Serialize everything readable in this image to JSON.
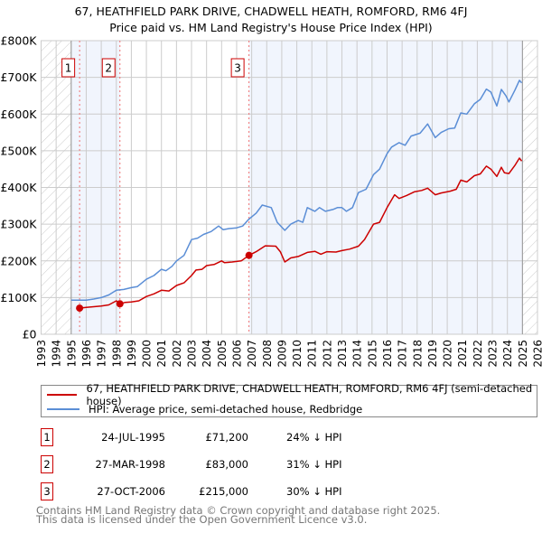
{
  "chart_data": {
    "type": "line",
    "title": "67, HEATHFIELD PARK DRIVE, CHADWELL HEATH, ROMFORD, RM6 4FJ",
    "subtitle": "Price paid vs. HM Land Registry's House Price Index (HPI)",
    "xlim": [
      1993,
      2026
    ],
    "ylim": [
      0,
      800000
    ],
    "x_ticks": [
      "1993",
      "1994",
      "1995",
      "1996",
      "1997",
      "1998",
      "1999",
      "2000",
      "2001",
      "2002",
      "2003",
      "2004",
      "2005",
      "2006",
      "2007",
      "2008",
      "2009",
      "2010",
      "2011",
      "2012",
      "2013",
      "2014",
      "2015",
      "2016",
      "2017",
      "2018",
      "2019",
      "2020",
      "2021",
      "2022",
      "2023",
      "2024",
      "2025",
      "2026"
    ],
    "y_ticks": [
      {
        "v": 0,
        "label": "£0"
      },
      {
        "v": 100000,
        "label": "£100K"
      },
      {
        "v": 200000,
        "label": "£200K"
      },
      {
        "v": 300000,
        "label": "£300K"
      },
      {
        "v": 400000,
        "label": "£400K"
      },
      {
        "v": 500000,
        "label": "£500K"
      },
      {
        "v": 600000,
        "label": "£600K"
      },
      {
        "v": 700000,
        "label": "£700K"
      },
      {
        "v": 800000,
        "label": "£800K"
      }
    ],
    "grid": true,
    "data_range": [
      1995,
      2025
    ],
    "shaded_ranges": [
      [
        1995,
        1998.24
      ],
      [
        2006.82,
        2025
      ]
    ],
    "series": [
      {
        "name": "67, HEATHFIELD PARK DRIVE, CHADWELL HEATH, ROMFORD, RM6 4FJ (semi-detached house)",
        "color": "#cc0000",
        "points": [
          [
            1995.56,
            71200
          ],
          [
            1996,
            73000
          ],
          [
            1996.5,
            75000
          ],
          [
            1997,
            77000
          ],
          [
            1997.5,
            80000
          ],
          [
            1998,
            91000
          ],
          [
            1998.24,
            83000
          ],
          [
            1998.6,
            87000
          ],
          [
            1999,
            88000
          ],
          [
            1999.5,
            91000
          ],
          [
            2000,
            103000
          ],
          [
            2000.5,
            110000
          ],
          [
            2001,
            120000
          ],
          [
            2001.5,
            118000
          ],
          [
            2002,
            133000
          ],
          [
            2002.5,
            140000
          ],
          [
            2003,
            160000
          ],
          [
            2003.3,
            175000
          ],
          [
            2003.7,
            177000
          ],
          [
            2004,
            187000
          ],
          [
            2004.5,
            190000
          ],
          [
            2005,
            200000
          ],
          [
            2005.2,
            195000
          ],
          [
            2005.7,
            197000
          ],
          [
            2006.3,
            200000
          ],
          [
            2006.82,
            215000
          ],
          [
            2007.3,
            225000
          ],
          [
            2007.9,
            241000
          ],
          [
            2008.6,
            240000
          ],
          [
            2008.9,
            225000
          ],
          [
            2009.2,
            197000
          ],
          [
            2009.6,
            208000
          ],
          [
            2010.1,
            212000
          ],
          [
            2010.7,
            223000
          ],
          [
            2011.2,
            226000
          ],
          [
            2011.6,
            218000
          ],
          [
            2012,
            225000
          ],
          [
            2012.6,
            224000
          ],
          [
            2013,
            228000
          ],
          [
            2013.5,
            232000
          ],
          [
            2014.1,
            240000
          ],
          [
            2014.5,
            258000
          ],
          [
            2015.1,
            300000
          ],
          [
            2015.5,
            305000
          ],
          [
            2016,
            345000
          ],
          [
            2016.5,
            380000
          ],
          [
            2016.8,
            370000
          ],
          [
            2017.3,
            378000
          ],
          [
            2017.8,
            388000
          ],
          [
            2018.3,
            392000
          ],
          [
            2018.7,
            398000
          ],
          [
            2019.2,
            380000
          ],
          [
            2019.6,
            385000
          ],
          [
            2020.2,
            390000
          ],
          [
            2020.6,
            395000
          ],
          [
            2020.9,
            420000
          ],
          [
            2021.3,
            415000
          ],
          [
            2021.8,
            432000
          ],
          [
            2022.2,
            437000
          ],
          [
            2022.6,
            458000
          ],
          [
            2022.9,
            450000
          ],
          [
            2023.3,
            430000
          ],
          [
            2023.6,
            455000
          ],
          [
            2023.8,
            440000
          ],
          [
            2024.1,
            438000
          ],
          [
            2024.5,
            460000
          ],
          [
            2024.8,
            480000
          ],
          [
            2024.95,
            472000
          ]
        ]
      },
      {
        "name": "HPI: Average price, semi-detached house, Redbridge",
        "color": "#5b8ed6",
        "points": [
          [
            1995,
            93000
          ],
          [
            1995.5,
            93000
          ],
          [
            1996,
            93000
          ],
          [
            1996.5,
            96000
          ],
          [
            1997,
            100000
          ],
          [
            1997.5,
            107000
          ],
          [
            1998,
            120000
          ],
          [
            1998.5,
            122000
          ],
          [
            1999,
            127000
          ],
          [
            1999.4,
            130000
          ],
          [
            2000,
            150000
          ],
          [
            2000.5,
            160000
          ],
          [
            2001,
            177000
          ],
          [
            2001.3,
            173000
          ],
          [
            2001.7,
            185000
          ],
          [
            2002,
            200000
          ],
          [
            2002.5,
            215000
          ],
          [
            2003,
            258000
          ],
          [
            2003.4,
            262000
          ],
          [
            2003.8,
            272000
          ],
          [
            2004.3,
            280000
          ],
          [
            2004.8,
            295000
          ],
          [
            2005.1,
            285000
          ],
          [
            2005.5,
            288000
          ],
          [
            2006,
            290000
          ],
          [
            2006.4,
            295000
          ],
          [
            2006.8,
            313000
          ],
          [
            2007.3,
            330000
          ],
          [
            2007.7,
            352000
          ],
          [
            2008.3,
            345000
          ],
          [
            2008.7,
            305000
          ],
          [
            2009.2,
            283000
          ],
          [
            2009.6,
            300000
          ],
          [
            2010.1,
            310000
          ],
          [
            2010.4,
            305000
          ],
          [
            2010.7,
            345000
          ],
          [
            2011.2,
            335000
          ],
          [
            2011.5,
            345000
          ],
          [
            2011.9,
            335000
          ],
          [
            2012.4,
            340000
          ],
          [
            2012.7,
            345000
          ],
          [
            2013,
            345000
          ],
          [
            2013.3,
            335000
          ],
          [
            2013.7,
            345000
          ],
          [
            2014.1,
            386000
          ],
          [
            2014.6,
            395000
          ],
          [
            2015.1,
            435000
          ],
          [
            2015.5,
            450000
          ],
          [
            2016,
            492000
          ],
          [
            2016.3,
            510000
          ],
          [
            2016.8,
            522000
          ],
          [
            2017.2,
            515000
          ],
          [
            2017.6,
            540000
          ],
          [
            2018.2,
            548000
          ],
          [
            2018.7,
            573000
          ],
          [
            2019.2,
            536000
          ],
          [
            2019.6,
            550000
          ],
          [
            2020.1,
            560000
          ],
          [
            2020.5,
            562000
          ],
          [
            2020.9,
            603000
          ],
          [
            2021.3,
            600000
          ],
          [
            2021.8,
            628000
          ],
          [
            2022.2,
            640000
          ],
          [
            2022.6,
            668000
          ],
          [
            2022.9,
            660000
          ],
          [
            2023.3,
            622000
          ],
          [
            2023.6,
            667000
          ],
          [
            2023.9,
            650000
          ],
          [
            2024.1,
            633000
          ],
          [
            2024.5,
            665000
          ],
          [
            2024.8,
            692000
          ],
          [
            2024.95,
            685000
          ]
        ]
      }
    ],
    "sales": [
      {
        "id": "1",
        "x": 1995.56,
        "y": 71200
      },
      {
        "id": "2",
        "x": 1998.24,
        "y": 83000
      },
      {
        "id": "3",
        "x": 2006.82,
        "y": 215000
      }
    ]
  },
  "legend": {
    "property": "67, HEATHFIELD PARK DRIVE, CHADWELL HEATH, ROMFORD, RM6 4FJ (semi-detached house)",
    "hpi": "HPI: Average price, semi-detached house, Redbridge"
  },
  "transactions": [
    {
      "num": "1",
      "date": "24-JUL-1995",
      "price": "£71,200",
      "hpi": "24% ↓ HPI"
    },
    {
      "num": "2",
      "date": "27-MAR-1998",
      "price": "£83,000",
      "hpi": "31% ↓ HPI"
    },
    {
      "num": "3",
      "date": "27-OCT-2006",
      "price": "£215,000",
      "hpi": "30% ↓ HPI"
    }
  ],
  "footer": {
    "line1": "Contains HM Land Registry data © Crown copyright and database right 2025.",
    "line2": "This data is licensed under the Open Government Licence v3.0."
  }
}
